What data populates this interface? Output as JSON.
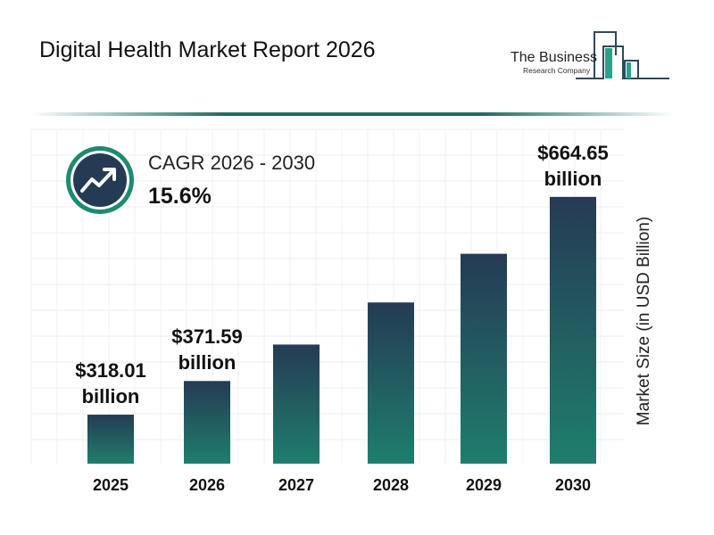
{
  "title": "Digital Health Market Report 2026",
  "logo": {
    "line1": "The Business",
    "line2": "Research Company"
  },
  "cagr": {
    "label": "CAGR 2026 - 2030",
    "value": "15.6%",
    "icon": "trending-up-icon"
  },
  "colors": {
    "bar_top": "#253b54",
    "bar_bottom": "#1f7e6d",
    "accent": "#1e8a70",
    "icon_bg": "#253a55"
  },
  "chart_data": {
    "type": "bar",
    "title": "Digital Health Market Report 2026",
    "ylabel": "Market Size (in USD Billion)",
    "categories": [
      "2025",
      "2026",
      "2027",
      "2028",
      "2029",
      "2030"
    ],
    "values": [
      318.01,
      371.59,
      429.6,
      496.6,
      574.1,
      664.65
    ],
    "data_labels": [
      {
        "index": 0,
        "value": "$318.01",
        "unit": "billion"
      },
      {
        "index": 1,
        "value": "$371.59",
        "unit": "billion"
      },
      {
        "index": 5,
        "value": "$664.65",
        "unit": "billion"
      }
    ],
    "grid": true
  }
}
